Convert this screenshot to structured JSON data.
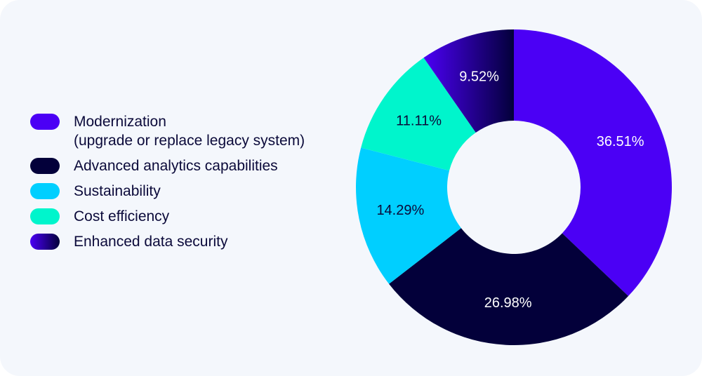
{
  "chart_data": {
    "type": "pie",
    "variant": "donut",
    "title": "",
    "slices": [
      {
        "label": "Modernization\n(upgrade or replace legacy system)",
        "value": 36.51,
        "display": "36.51%",
        "color": "#4b00f5",
        "text_color": "#ffffff"
      },
      {
        "label": "Advanced analytics capabilities",
        "value": 26.98,
        "display": "26.98%",
        "color": "#03003a",
        "text_color": "#ffffff"
      },
      {
        "label": "Sustainability",
        "value": 14.29,
        "display": "14.29%",
        "color": "#00cfff",
        "text_color": "#0b0a3a"
      },
      {
        "label": "Cost efficiency",
        "value": 11.11,
        "display": "11.11%",
        "color": "#00f5cc",
        "text_color": "#0b0a3a"
      },
      {
        "label": "Enhanced data security",
        "value": 9.52,
        "display": "9.52%",
        "color": "#4b00f5",
        "color_end": "#03003a",
        "gradient": true,
        "text_color": "#ffffff"
      }
    ],
    "start": "top",
    "direction": "clockwise",
    "legend_position": "left"
  }
}
